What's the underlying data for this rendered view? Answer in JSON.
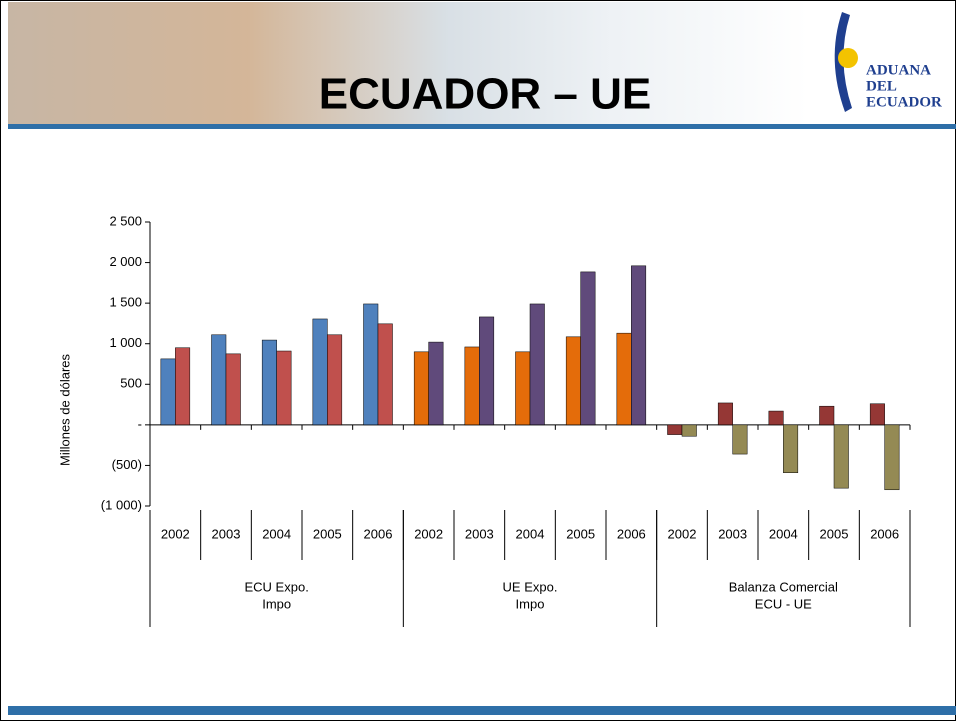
{
  "header": {
    "title": "ECUADOR – UE",
    "logo": [
      "ADUANA",
      "DEL",
      "ECUADOR"
    ]
  },
  "chart_data": {
    "type": "grouped-bar",
    "ylabel": "Millones de dólares",
    "ylim": [
      -1000,
      2500
    ],
    "yticks": [
      {
        "value": -1000,
        "label": "(1 000)"
      },
      {
        "value": -500,
        "label": "(500)"
      },
      {
        "value": 0,
        "label": "-"
      },
      500,
      {
        "value": 1000,
        "label": "1 000"
      },
      {
        "value": 1500,
        "label": "1 500"
      },
      {
        "value": 2000,
        "label": "2 000"
      },
      {
        "value": 2500,
        "label": "2 500"
      }
    ],
    "groups": [
      {
        "label": [
          "ECU Expo.",
          "Impo"
        ],
        "categories": [
          "2002",
          "2003",
          "2004",
          "2005",
          "2006"
        ],
        "series": [
          {
            "color": "#4f81bd",
            "values": [
              813,
              1110,
              1045,
              1305,
              1490
            ]
          },
          {
            "color": "#c0504d",
            "values": [
              950,
              875,
              910,
              1110,
              1245
            ]
          }
        ]
      },
      {
        "label": [
          "UE Expo.",
          "Impo"
        ],
        "categories": [
          "2002",
          "2003",
          "2004",
          "2005",
          "2006"
        ],
        "series": [
          {
            "color": "#e46c0a",
            "values": [
              900,
              960,
              900,
              1085,
              1130
            ]
          },
          {
            "color": "#604a7b",
            "values": [
              1020,
              1330,
              1490,
              1885,
              1960
            ]
          }
        ]
      },
      {
        "label": [
          "Balanza Comercial",
          "ECU - UE"
        ],
        "categories": [
          "2002",
          "2003",
          "2004",
          "2005",
          "2006"
        ],
        "series": [
          {
            "color": "#953735",
            "values": [
              -120,
              270,
              170,
              230,
              260
            ]
          },
          {
            "color": "#948a54",
            "values": [
              -140,
              -360,
              -590,
              -780,
              -800
            ]
          }
        ]
      }
    ]
  }
}
